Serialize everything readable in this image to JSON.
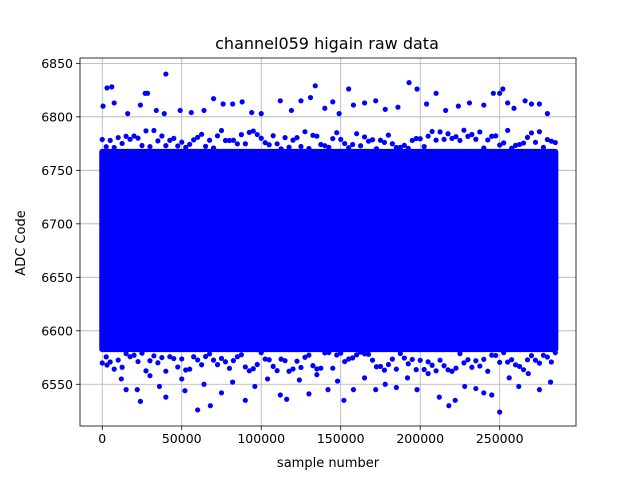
{
  "chart_data": {
    "type": "scatter",
    "title": "channel059 higain raw data",
    "xlabel": "sample number",
    "ylabel": "ADC Code",
    "xlim": [
      -14000,
      298000
    ],
    "ylim": [
      6511,
      6855
    ],
    "x_ticks": [
      0,
      50000,
      100000,
      150000,
      200000,
      250000
    ],
    "y_ticks": [
      6550,
      6600,
      6650,
      6700,
      6750,
      6800,
      6850
    ],
    "grid": true,
    "marker_color": "#0000ff",
    "series": [
      {
        "dense_band": {
          "x_range": [
            0,
            285000
          ],
          "y_range": [
            6580,
            6770
          ]
        },
        "points": [
          {
            "x": 500,
            "y": 6810
          },
          {
            "x": 3000,
            "y": 6827
          },
          {
            "x": 6000,
            "y": 6828
          },
          {
            "x": 7500,
            "y": 6813
          },
          {
            "x": 16000,
            "y": 6803
          },
          {
            "x": 24000,
            "y": 6811
          },
          {
            "x": 27000,
            "y": 6822
          },
          {
            "x": 28500,
            "y": 6822
          },
          {
            "x": 34000,
            "y": 6806
          },
          {
            "x": 39000,
            "y": 6803
          },
          {
            "x": 40000,
            "y": 6840
          },
          {
            "x": 49000,
            "y": 6806
          },
          {
            "x": 56000,
            "y": 6804
          },
          {
            "x": 64000,
            "y": 6806
          },
          {
            "x": 70000,
            "y": 6817
          },
          {
            "x": 76000,
            "y": 6812
          },
          {
            "x": 82000,
            "y": 6812
          },
          {
            "x": 88000,
            "y": 6814
          },
          {
            "x": 94000,
            "y": 6804
          },
          {
            "x": 100000,
            "y": 6803
          },
          {
            "x": 112000,
            "y": 6815
          },
          {
            "x": 119000,
            "y": 6806
          },
          {
            "x": 125000,
            "y": 6815
          },
          {
            "x": 131000,
            "y": 6818
          },
          {
            "x": 134000,
            "y": 6829
          },
          {
            "x": 140000,
            "y": 6808
          },
          {
            "x": 145000,
            "y": 6814
          },
          {
            "x": 149000,
            "y": 6803
          },
          {
            "x": 155000,
            "y": 6826
          },
          {
            "x": 158000,
            "y": 6811
          },
          {
            "x": 165000,
            "y": 6813
          },
          {
            "x": 172000,
            "y": 6815
          },
          {
            "x": 178000,
            "y": 6807
          },
          {
            "x": 186000,
            "y": 6809
          },
          {
            "x": 193000,
            "y": 6832
          },
          {
            "x": 198000,
            "y": 6826
          },
          {
            "x": 204000,
            "y": 6812
          },
          {
            "x": 210000,
            "y": 6822
          },
          {
            "x": 216000,
            "y": 6806
          },
          {
            "x": 224000,
            "y": 6810
          },
          {
            "x": 231000,
            "y": 6813
          },
          {
            "x": 240000,
            "y": 6811
          },
          {
            "x": 246000,
            "y": 6822
          },
          {
            "x": 250000,
            "y": 6822
          },
          {
            "x": 252000,
            "y": 6826
          },
          {
            "x": 255000,
            "y": 6813
          },
          {
            "x": 259000,
            "y": 6808
          },
          {
            "x": 266000,
            "y": 6815
          },
          {
            "x": 270000,
            "y": 6812
          },
          {
            "x": 275000,
            "y": 6812
          },
          {
            "x": 280000,
            "y": 6803
          },
          {
            "x": 3000,
            "y": 6568
          },
          {
            "x": 12000,
            "y": 6555
          },
          {
            "x": 15000,
            "y": 6545
          },
          {
            "x": 22000,
            "y": 6545
          },
          {
            "x": 24000,
            "y": 6534
          },
          {
            "x": 30000,
            "y": 6558
          },
          {
            "x": 36000,
            "y": 6548
          },
          {
            "x": 40000,
            "y": 6538
          },
          {
            "x": 50000,
            "y": 6555
          },
          {
            "x": 52000,
            "y": 6544
          },
          {
            "x": 60000,
            "y": 6526
          },
          {
            "x": 64000,
            "y": 6550
          },
          {
            "x": 68000,
            "y": 6530
          },
          {
            "x": 75000,
            "y": 6542
          },
          {
            "x": 82000,
            "y": 6552
          },
          {
            "x": 90000,
            "y": 6535
          },
          {
            "x": 96000,
            "y": 6548
          },
          {
            "x": 104000,
            "y": 6555
          },
          {
            "x": 112000,
            "y": 6540
          },
          {
            "x": 116000,
            "y": 6536
          },
          {
            "x": 124000,
            "y": 6554
          },
          {
            "x": 130000,
            "y": 6541
          },
          {
            "x": 135000,
            "y": 6559
          },
          {
            "x": 142000,
            "y": 6545
          },
          {
            "x": 148000,
            "y": 6553
          },
          {
            "x": 152000,
            "y": 6535
          },
          {
            "x": 158000,
            "y": 6545
          },
          {
            "x": 165000,
            "y": 6556
          },
          {
            "x": 172000,
            "y": 6545
          },
          {
            "x": 178000,
            "y": 6550
          },
          {
            "x": 185000,
            "y": 6547
          },
          {
            "x": 192000,
            "y": 6556
          },
          {
            "x": 198000,
            "y": 6545
          },
          {
            "x": 205000,
            "y": 6560
          },
          {
            "x": 212000,
            "y": 6538
          },
          {
            "x": 218000,
            "y": 6530
          },
          {
            "x": 222000,
            "y": 6535
          },
          {
            "x": 228000,
            "y": 6548
          },
          {
            "x": 235000,
            "y": 6546
          },
          {
            "x": 240000,
            "y": 6542
          },
          {
            "x": 245000,
            "y": 6540
          },
          {
            "x": 250000,
            "y": 6524
          },
          {
            "x": 256000,
            "y": 6556
          },
          {
            "x": 262000,
            "y": 6548
          },
          {
            "x": 268000,
            "y": 6560
          },
          {
            "x": 275000,
            "y": 6545
          },
          {
            "x": 282000,
            "y": 6552
          }
        ]
      }
    ]
  }
}
